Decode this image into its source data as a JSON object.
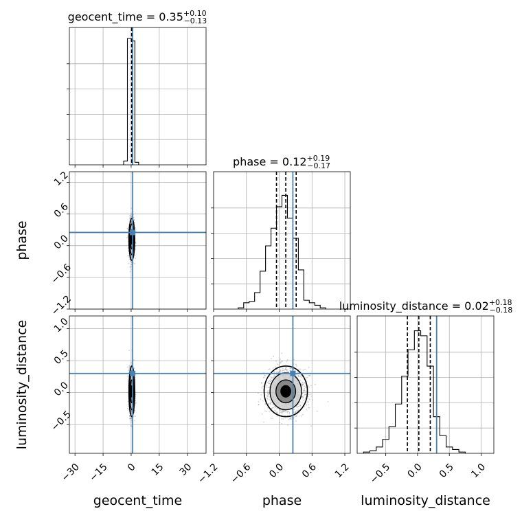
{
  "chart_data": {
    "type": "corner",
    "parameters": [
      "geocent_time",
      "phase",
      "luminosity_distance"
    ],
    "truth": {
      "geocent_time": 0.8,
      "phase": 0.25,
      "luminosity_distance": 0.3
    },
    "truth_color": "#4682b4",
    "grid": true,
    "panels": {
      "hist_geocent_time": {
        "title_name": "geocent_time",
        "title_value": "0.35",
        "title_plus": "+0.10",
        "title_minus": "−0.13",
        "xlim": [
          -33,
          40
        ],
        "quantiles": [
          0.22,
          0.35,
          0.45
        ],
        "bins": [
          [
            -3,
            0.03
          ],
          [
            -1,
            1.0
          ],
          [
            1,
            0.98
          ],
          [
            3,
            0.02
          ]
        ]
      },
      "hist_phase": {
        "title_name": "phase",
        "title_value": "0.12",
        "title_plus": "+0.19",
        "title_minus": "−0.17",
        "xlim": [
          -1.2,
          1.3
        ],
        "quantiles": [
          -0.05,
          0.12,
          0.31
        ],
        "bins": [
          [
            -0.7,
            0.01
          ],
          [
            -0.6,
            0.05
          ],
          [
            -0.5,
            0.06
          ],
          [
            -0.4,
            0.13
          ],
          [
            -0.3,
            0.3
          ],
          [
            -0.2,
            0.5
          ],
          [
            -0.1,
            0.64
          ],
          [
            0.0,
            0.81
          ],
          [
            0.1,
            0.9
          ],
          [
            0.2,
            0.72
          ],
          [
            0.3,
            0.56
          ],
          [
            0.4,
            0.31
          ],
          [
            0.5,
            0.07
          ],
          [
            0.6,
            0.05
          ],
          [
            0.7,
            0.03
          ],
          [
            0.8,
            0.01
          ]
        ]
      },
      "hist_luminosity_distance": {
        "title_name": "luminosity_distance",
        "title_value": "0.02",
        "title_plus": "+0.18",
        "title_minus": "−0.18",
        "xlim": [
          -0.95,
          1.2
        ],
        "quantiles": [
          -0.16,
          0.02,
          0.2
        ],
        "bins": [
          [
            -0.8,
            0.01
          ],
          [
            -0.7,
            0.02
          ],
          [
            -0.6,
            0.05
          ],
          [
            -0.5,
            0.11
          ],
          [
            -0.4,
            0.21
          ],
          [
            -0.3,
            0.39
          ],
          [
            -0.2,
            0.61
          ],
          [
            -0.1,
            0.82
          ],
          [
            0.0,
            0.97
          ],
          [
            0.1,
            0.93
          ],
          [
            0.2,
            0.69
          ],
          [
            0.3,
            0.29
          ],
          [
            0.4,
            0.14
          ],
          [
            0.5,
            0.05
          ],
          [
            0.6,
            0.03
          ],
          [
            0.7,
            0.01
          ]
        ]
      },
      "scatter_phase_vs_geocent_time": {
        "xlim": [
          -33,
          40
        ],
        "ylim": [
          -1.2,
          1.4
        ],
        "x_center": 0.35,
        "x_spread": 0.7,
        "y_center": 0.12,
        "y_spread": 0.18
      },
      "scatter_luminosity_distance_vs_geocent_time": {
        "xlim": [
          -33,
          40
        ],
        "ylim": [
          -0.95,
          1.2
        ],
        "x_center": 0.35,
        "x_spread": 0.7,
        "y_center": 0.02,
        "y_spread": 0.18
      },
      "scatter_luminosity_distance_vs_phase": {
        "xlim": [
          -1.2,
          1.3
        ],
        "ylim": [
          -0.95,
          1.2
        ],
        "x_center": 0.12,
        "x_spread": 0.18,
        "y_center": 0.02,
        "y_spread": 0.18
      }
    },
    "ticks": {
      "geocent_time": [
        "−30",
        "−15",
        "0",
        "15",
        "30"
      ],
      "phase": [
        "−1.2",
        "−0.6",
        "0.0",
        "0.6",
        "1.2"
      ],
      "luminosity_distance": [
        "−0.5",
        "0.0",
        "0.5",
        "1.0"
      ]
    },
    "tick_values": {
      "geocent_time": [
        -30,
        -15,
        0,
        15,
        30
      ],
      "phase": [
        -1.2,
        -0.6,
        0.0,
        0.6,
        1.2
      ],
      "luminosity_distance": [
        -0.5,
        0.0,
        0.5,
        1.0
      ]
    },
    "xlabels": [
      "geocent_time",
      "phase",
      "luminosity_distance"
    ],
    "ylabels": [
      "phase",
      "luminosity_distance"
    ]
  }
}
